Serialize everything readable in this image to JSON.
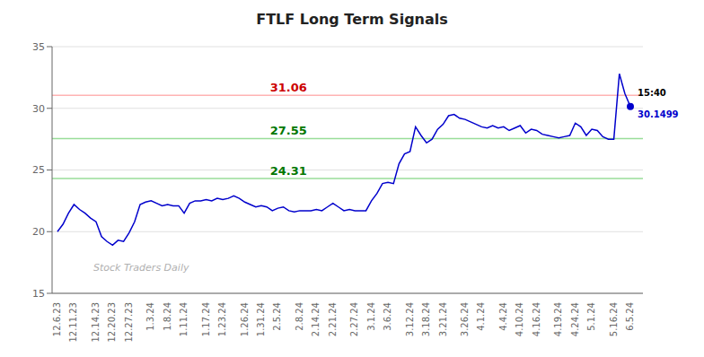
{
  "chart_data": {
    "type": "line",
    "title": "FTLF Long Term Signals",
    "categories": [
      "12.6.23",
      null,
      null,
      "12.11.23",
      null,
      null,
      null,
      "12.14.23",
      null,
      null,
      "12.20.23",
      null,
      null,
      "12.27.23",
      null,
      null,
      null,
      "1.3.24",
      null,
      null,
      "1.8.24",
      null,
      null,
      "1.11.24",
      null,
      null,
      null,
      "1.17.24",
      null,
      null,
      "1.23.24",
      null,
      null,
      null,
      "1.26.24",
      null,
      null,
      "1.31.24",
      null,
      null,
      "2.5.24",
      null,
      null,
      null,
      "2.8.24",
      null,
      null,
      "2.14.24",
      null,
      null,
      "2.21.24",
      null,
      null,
      null,
      "2.27.24",
      null,
      null,
      "3.1.24",
      null,
      null,
      "3.6.24",
      null,
      null,
      null,
      "3.12.24",
      null,
      null,
      "3.18.24",
      null,
      null,
      "3.21.24",
      null,
      null,
      null,
      "3.26.24",
      null,
      null,
      "4.1.24",
      null,
      null,
      null,
      "4.4.24",
      null,
      null,
      "4.10.24",
      null,
      null,
      "4.16.24",
      null,
      null,
      null,
      "4.19.24",
      null,
      null,
      "4.24.24",
      null,
      null,
      "5.1.24",
      null,
      null,
      null,
      "5.16.24",
      null,
      null,
      "6.5.24"
    ],
    "values": [
      20.0,
      20.6,
      21.5,
      22.2,
      21.8,
      21.5,
      21.1,
      20.8,
      19.6,
      19.2,
      18.9,
      19.3,
      19.2,
      19.9,
      20.8,
      22.2,
      22.4,
      22.5,
      22.3,
      22.1,
      22.2,
      22.1,
      22.1,
      21.5,
      22.3,
      22.5,
      22.5,
      22.6,
      22.5,
      22.7,
      22.6,
      22.7,
      22.9,
      22.7,
      22.4,
      22.2,
      22.0,
      22.1,
      22.0,
      21.7,
      21.9,
      22.0,
      21.7,
      21.6,
      21.7,
      21.7,
      21.7,
      21.8,
      21.7,
      22.0,
      22.3,
      22.0,
      21.7,
      21.8,
      21.7,
      21.7,
      21.7,
      22.5,
      23.1,
      23.9,
      24.0,
      23.9,
      25.5,
      26.3,
      26.5,
      28.5,
      27.8,
      27.2,
      27.5,
      28.3,
      28.7,
      29.4,
      29.5,
      29.2,
      29.1,
      28.9,
      28.7,
      28.5,
      28.4,
      28.6,
      28.4,
      28.5,
      28.2,
      28.4,
      28.6,
      28.0,
      28.3,
      28.2,
      27.9,
      27.8,
      27.7,
      27.6,
      27.7,
      27.8,
      28.8,
      28.5,
      27.8,
      28.3,
      28.2,
      27.7,
      27.5,
      27.5,
      32.8,
      31.2,
      30.1499
    ],
    "color": "#0000cc",
    "ylim": [
      15,
      35
    ],
    "yticks": [
      15,
      20,
      25,
      30,
      35
    ],
    "grid": true,
    "reference_lines": [
      {
        "value": 31.06,
        "color": "#ffb3b3",
        "label_color": "#cc0000"
      },
      {
        "value": 27.55,
        "color": "#99dd99",
        "label_color": "#007700"
      },
      {
        "value": 24.31,
        "color": "#99dd99",
        "label_color": "#007700"
      }
    ],
    "last_point": {
      "value": 30.1499,
      "label": "30.1499",
      "time": "15:40",
      "color": "#0000cc",
      "time_color": "#000000"
    },
    "annotations": [
      {
        "text": "Stock Traders Daily",
        "color": "#b0b0b0"
      }
    ]
  }
}
